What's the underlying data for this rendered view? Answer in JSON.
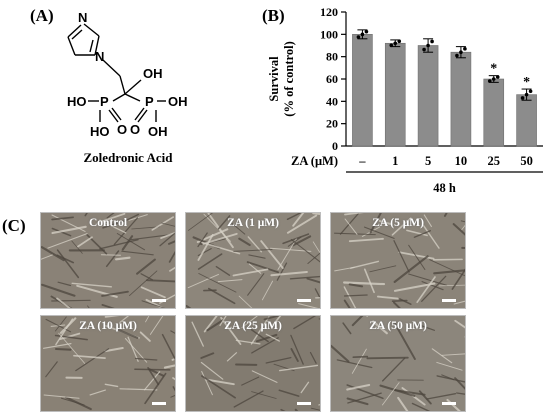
{
  "panels": {
    "a_label": "(A)",
    "b_label": "(B)",
    "c_label": "(C)"
  },
  "molecule": {
    "name": "Zoledronic Acid",
    "atoms": {
      "n_ring": "N",
      "n_link": "N",
      "oh_top": "OH",
      "p_left": "P",
      "p_right": "P",
      "ho_left": "HO",
      "oh_right": "OH",
      "ho_lower_left": "HO",
      "oh_lower_right": "OH",
      "o_left": "O",
      "o_right": "O"
    }
  },
  "chart_data": {
    "type": "bar",
    "ylabel": "Survival\n(% of control)",
    "ylim": [
      0,
      120
    ],
    "yticks": [
      0,
      20,
      40,
      60,
      80,
      100,
      120
    ],
    "x_row_label": "ZA (μM)",
    "categories": [
      "–",
      "1",
      "5",
      "10",
      "25",
      "50"
    ],
    "values": [
      100,
      92,
      90,
      84,
      60,
      46
    ],
    "errors": [
      4,
      3,
      6,
      5,
      3,
      5
    ],
    "significance": [
      "",
      "",
      "",
      "",
      "*",
      "*"
    ],
    "timepoint": "48 h",
    "bar_color": "#8c8c8c"
  },
  "micrographs": [
    {
      "label": "Control",
      "tone": "#8a8277"
    },
    {
      "label": "ZA (1 μM)",
      "tone": "#8d867b"
    },
    {
      "label": "ZA (5 μM)",
      "tone": "#8b8479"
    },
    {
      "label": "ZA (10 μM)",
      "tone": "#898175"
    },
    {
      "label": "ZA (25 μM)",
      "tone": "#827b70"
    },
    {
      "label": "ZA (50 μM)",
      "tone": "#8c867c"
    }
  ]
}
